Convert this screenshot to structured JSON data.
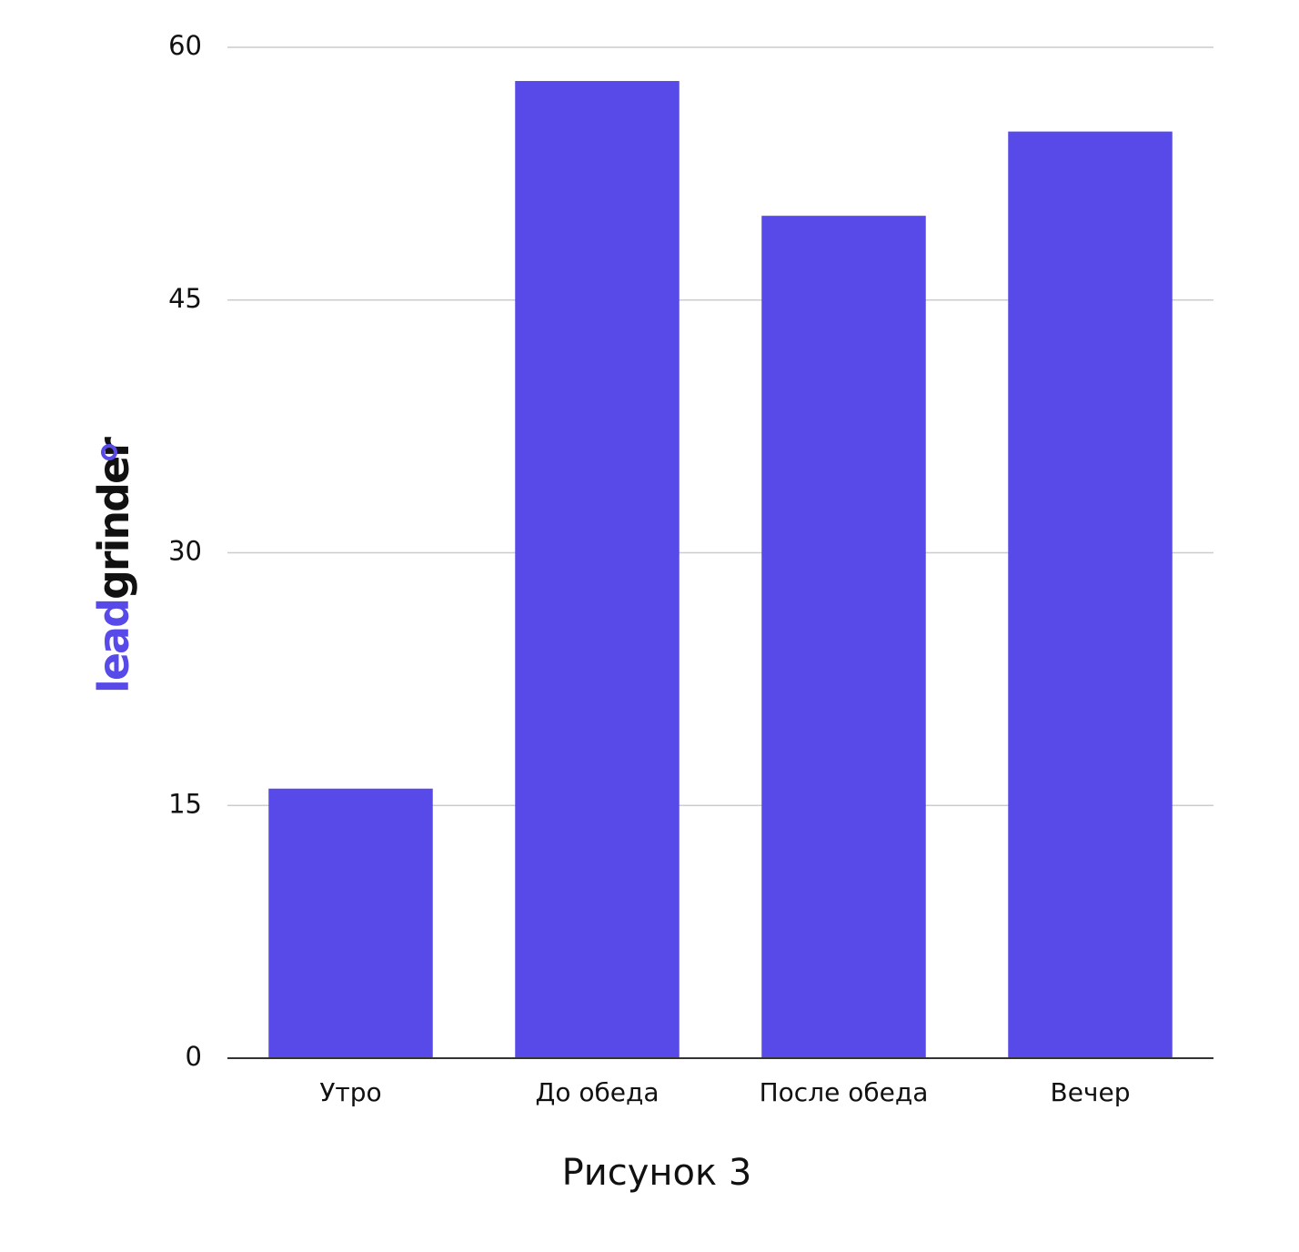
{
  "chart_data": {
    "type": "bar",
    "x_label": "Рисунок 3",
    "categories": [
      "Утро",
      "До обеда",
      "После обеда",
      "Вечер"
    ],
    "values": [
      16,
      58,
      50,
      55
    ],
    "color": "#5849e9",
    "ylim": [
      0,
      60
    ],
    "yticks": [
      0,
      15,
      30,
      45,
      60
    ],
    "grid": true,
    "logo": [
      "lead",
      "grinder"
    ]
  }
}
